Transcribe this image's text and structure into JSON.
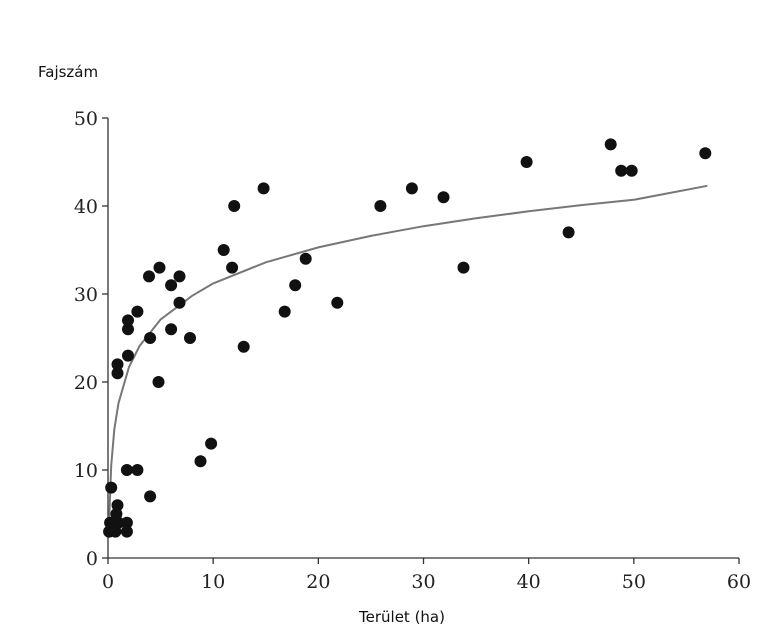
{
  "chart_data": {
    "type": "scatter",
    "title": "",
    "xlabel": "Terület (ha)",
    "ylabel": "Fajszám",
    "xlim": [
      0,
      60
    ],
    "ylim": [
      0,
      50
    ],
    "x_ticks": [
      "0",
      "10",
      "20",
      "30",
      "40",
      "50",
      "60"
    ],
    "y_ticks": [
      "0",
      "10",
      "20",
      "30",
      "40",
      "50"
    ],
    "grid": false,
    "legend": "none",
    "colors": {
      "points": "#111111",
      "curve": "#777777",
      "axes": "#333333"
    },
    "points": [
      {
        "x": 0.1,
        "y": 3
      },
      {
        "x": 0.2,
        "y": 4
      },
      {
        "x": 0.3,
        "y": 8
      },
      {
        "x": 0.5,
        "y": 4
      },
      {
        "x": 0.7,
        "y": 3
      },
      {
        "x": 0.8,
        "y": 5
      },
      {
        "x": 0.9,
        "y": 6
      },
      {
        "x": 1.0,
        "y": 4
      },
      {
        "x": 0.9,
        "y": 21
      },
      {
        "x": 0.9,
        "y": 22
      },
      {
        "x": 1.8,
        "y": 3
      },
      {
        "x": 1.8,
        "y": 4
      },
      {
        "x": 1.8,
        "y": 10
      },
      {
        "x": 1.9,
        "y": 23
      },
      {
        "x": 1.9,
        "y": 26
      },
      {
        "x": 1.9,
        "y": 27
      },
      {
        "x": 2.8,
        "y": 10
      },
      {
        "x": 2.8,
        "y": 28
      },
      {
        "x": 4.0,
        "y": 7
      },
      {
        "x": 4.0,
        "y": 25
      },
      {
        "x": 3.9,
        "y": 32
      },
      {
        "x": 4.8,
        "y": 20
      },
      {
        "x": 4.9,
        "y": 33
      },
      {
        "x": 6.0,
        "y": 26
      },
      {
        "x": 6.0,
        "y": 31
      },
      {
        "x": 6.8,
        "y": 29
      },
      {
        "x": 6.8,
        "y": 32
      },
      {
        "x": 7.8,
        "y": 25
      },
      {
        "x": 8.8,
        "y": 11
      },
      {
        "x": 9.8,
        "y": 13
      },
      {
        "x": 11.0,
        "y": 35
      },
      {
        "x": 11.8,
        "y": 33
      },
      {
        "x": 12.0,
        "y": 40
      },
      {
        "x": 12.9,
        "y": 24
      },
      {
        "x": 14.8,
        "y": 42
      },
      {
        "x": 16.8,
        "y": 28
      },
      {
        "x": 17.8,
        "y": 31
      },
      {
        "x": 18.8,
        "y": 34
      },
      {
        "x": 21.8,
        "y": 29
      },
      {
        "x": 25.9,
        "y": 40
      },
      {
        "x": 28.9,
        "y": 42
      },
      {
        "x": 31.9,
        "y": 41
      },
      {
        "x": 33.8,
        "y": 33
      },
      {
        "x": 39.8,
        "y": 45
      },
      {
        "x": 43.8,
        "y": 37
      },
      {
        "x": 47.8,
        "y": 47
      },
      {
        "x": 48.8,
        "y": 44
      },
      {
        "x": 49.8,
        "y": 44
      },
      {
        "x": 56.8,
        "y": 46
      }
    ],
    "fit_curve": {
      "description_type": "logarithmic",
      "x": [
        0.1,
        0.3,
        0.6,
        1,
        2,
        3,
        5,
        8,
        10,
        15,
        20,
        25,
        30,
        35,
        40,
        45,
        50,
        57
      ],
      "y": [
        4,
        10.5,
        14.6,
        17.6,
        21.7,
        24.1,
        27.1,
        29.8,
        31.2,
        33.6,
        35.3,
        36.6,
        37.7,
        38.6,
        39.4,
        40.1,
        40.7,
        42.3
      ]
    }
  }
}
